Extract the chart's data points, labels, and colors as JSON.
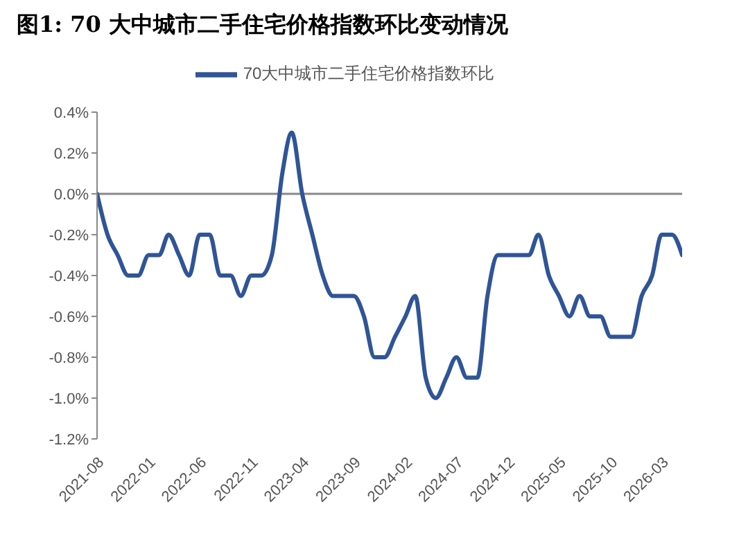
{
  "chart_data": {
    "type": "line",
    "title": "图1: 70 大中城市二手住宅价格指数环比变动情况",
    "x": [
      "2021-08",
      "2021-09",
      "2021-10",
      "2021-11",
      "2021-12",
      "2022-01",
      "2022-02",
      "2022-03",
      "2022-04",
      "2022-05",
      "2022-06",
      "2022-07",
      "2022-08",
      "2022-09",
      "2022-10",
      "2022-11",
      "2022-12",
      "2023-01",
      "2023-02",
      "2023-03",
      "2023-04",
      "2023-05",
      "2023-06",
      "2023-07",
      "2023-08",
      "2023-09",
      "2023-10",
      "2023-11",
      "2023-12",
      "2024-01",
      "2024-02",
      "2024-03",
      "2024-04",
      "2024-05",
      "2024-06",
      "2024-07",
      "2024-08",
      "2024-09",
      "2024-10",
      "2024-11",
      "2024-12",
      "2025-01",
      "2025-02",
      "2025-03",
      "2025-04",
      "2025-05",
      "2025-06",
      "2025-07",
      "2025-08",
      "2025-09",
      "2025-10",
      "2025-11",
      "2025-12",
      "2026-01",
      "2026-02",
      "2026-03",
      "2026-04",
      "2026-05"
    ],
    "xlim": [
      "2021-08",
      "2026-05"
    ],
    "xticks": [
      "2021-08",
      "2022-01",
      "2022-06",
      "2022-11",
      "2023-04",
      "2023-09",
      "2024-02",
      "2024-07",
      "2024-12",
      "2025-05",
      "2025-10",
      "2026-03"
    ],
    "series": [
      {
        "name": "70大中城市二手住宅价格指数环比",
        "color": "#2f5597",
        "values": [
          0.0,
          -0.2,
          -0.3,
          -0.4,
          -0.4,
          -0.3,
          -0.3,
          -0.2,
          -0.3,
          -0.4,
          -0.2,
          -0.2,
          -0.4,
          -0.4,
          -0.5,
          -0.4,
          -0.4,
          -0.3,
          0.1,
          0.3,
          0.0,
          -0.2,
          -0.4,
          -0.5,
          -0.5,
          -0.5,
          -0.6,
          -0.8,
          -0.8,
          -0.7,
          -0.6,
          -0.5,
          -0.9,
          -1.0,
          -0.9,
          -0.8,
          -0.9,
          -0.9,
          -0.5,
          -0.3,
          -0.3,
          -0.3,
          -0.3,
          -0.2,
          -0.4,
          -0.5,
          -0.6,
          -0.5,
          -0.6,
          -0.6,
          -0.7,
          -0.7,
          -0.7,
          -0.5,
          -0.4,
          -0.2,
          -0.2,
          -0.3
        ]
      }
    ],
    "ylim": [
      -1.2,
      0.4
    ],
    "yticks": [
      {
        "value": -1.2,
        "label": "-1.2%"
      },
      {
        "value": -1.0,
        "label": "-1.0%"
      },
      {
        "value": -0.8,
        "label": "-0.8%"
      },
      {
        "value": -0.6,
        "label": "-0.6%"
      },
      {
        "value": -0.4,
        "label": "-0.4%"
      },
      {
        "value": -0.2,
        "label": "-0.2%"
      },
      {
        "value": 0.0,
        "label": "0.0%"
      },
      {
        "value": 0.2,
        "label": "0.2%"
      },
      {
        "value": 0.4,
        "label": "0.4%"
      }
    ],
    "ref_lines": [
      {
        "axis": "y",
        "value": 0.0,
        "color": "#888888"
      }
    ],
    "grid": false,
    "legend": "top",
    "marker": "none",
    "line_style": "solid"
  }
}
